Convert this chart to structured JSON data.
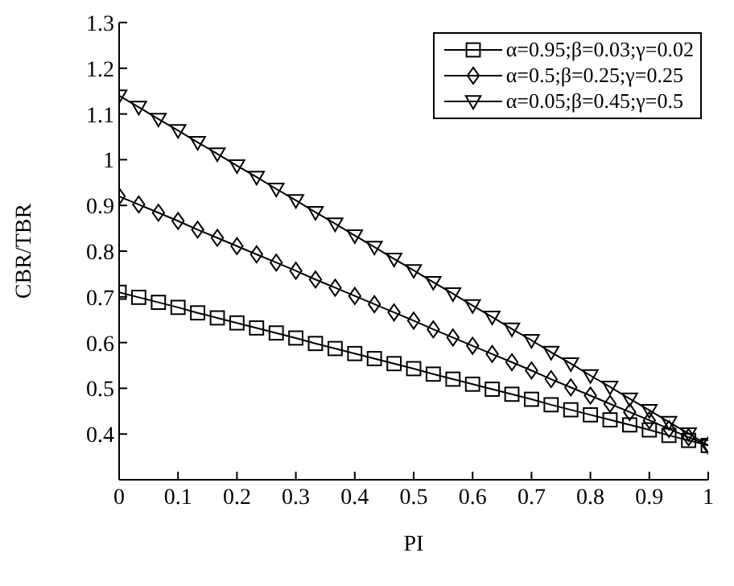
{
  "chart_data": {
    "type": "line",
    "xlabel": "PI",
    "ylabel": "CBR/TBR",
    "x": [
      0,
      0.0333,
      0.0667,
      0.1,
      0.1333,
      0.1667,
      0.2,
      0.2333,
      0.2667,
      0.3,
      0.3333,
      0.3667,
      0.4,
      0.4333,
      0.4667,
      0.5,
      0.5333,
      0.5667,
      0.6,
      0.6333,
      0.6667,
      0.7,
      0.7333,
      0.7667,
      0.8,
      0.8333,
      0.8667,
      0.9,
      0.9333,
      0.9667,
      1
    ],
    "series": [
      {
        "name": "α=0.95;β=0.03;γ=0.02",
        "color": "#000000",
        "marker": "square",
        "values": [
          0.71,
          0.699,
          0.688,
          0.677,
          0.665,
          0.654,
          0.643,
          0.632,
          0.621,
          0.61,
          0.598,
          0.587,
          0.576,
          0.565,
          0.554,
          0.543,
          0.531,
          0.52,
          0.509,
          0.498,
          0.487,
          0.476,
          0.464,
          0.453,
          0.442,
          0.431,
          0.42,
          0.409,
          0.397,
          0.386,
          0.375
        ]
      },
      {
        "name": "α=0.5;β=0.25;γ=0.25",
        "color": "#000000",
        "marker": "diamond",
        "values": [
          0.92,
          0.902,
          0.884,
          0.866,
          0.847,
          0.829,
          0.811,
          0.793,
          0.775,
          0.757,
          0.738,
          0.72,
          0.702,
          0.684,
          0.666,
          0.648,
          0.629,
          0.611,
          0.593,
          0.575,
          0.557,
          0.539,
          0.52,
          0.502,
          0.484,
          0.466,
          0.448,
          0.43,
          0.411,
          0.393,
          0.375
        ]
      },
      {
        "name": "α=0.05;β=0.45;γ=0.5",
        "color": "#000000",
        "marker": "triangle",
        "values": [
          1.14,
          1.115,
          1.089,
          1.064,
          1.038,
          1.013,
          0.987,
          0.962,
          0.936,
          0.911,
          0.885,
          0.86,
          0.834,
          0.809,
          0.783,
          0.758,
          0.732,
          0.707,
          0.681,
          0.656,
          0.63,
          0.605,
          0.579,
          0.554,
          0.528,
          0.503,
          0.477,
          0.452,
          0.426,
          0.401,
          0.375
        ]
      }
    ],
    "xlim": [
      0,
      1
    ],
    "xticks": [
      0,
      0.1,
      0.2,
      0.3,
      0.4,
      0.5,
      0.6,
      0.7,
      0.8,
      0.9,
      1
    ],
    "ylim": [
      0.3,
      1.3
    ],
    "yticks": [
      0.4,
      0.5,
      0.6,
      0.7,
      0.8,
      0.9,
      1,
      1.1,
      1.2,
      1.3
    ],
    "grid": false,
    "legend": "top right",
    "line_style": "solid"
  }
}
